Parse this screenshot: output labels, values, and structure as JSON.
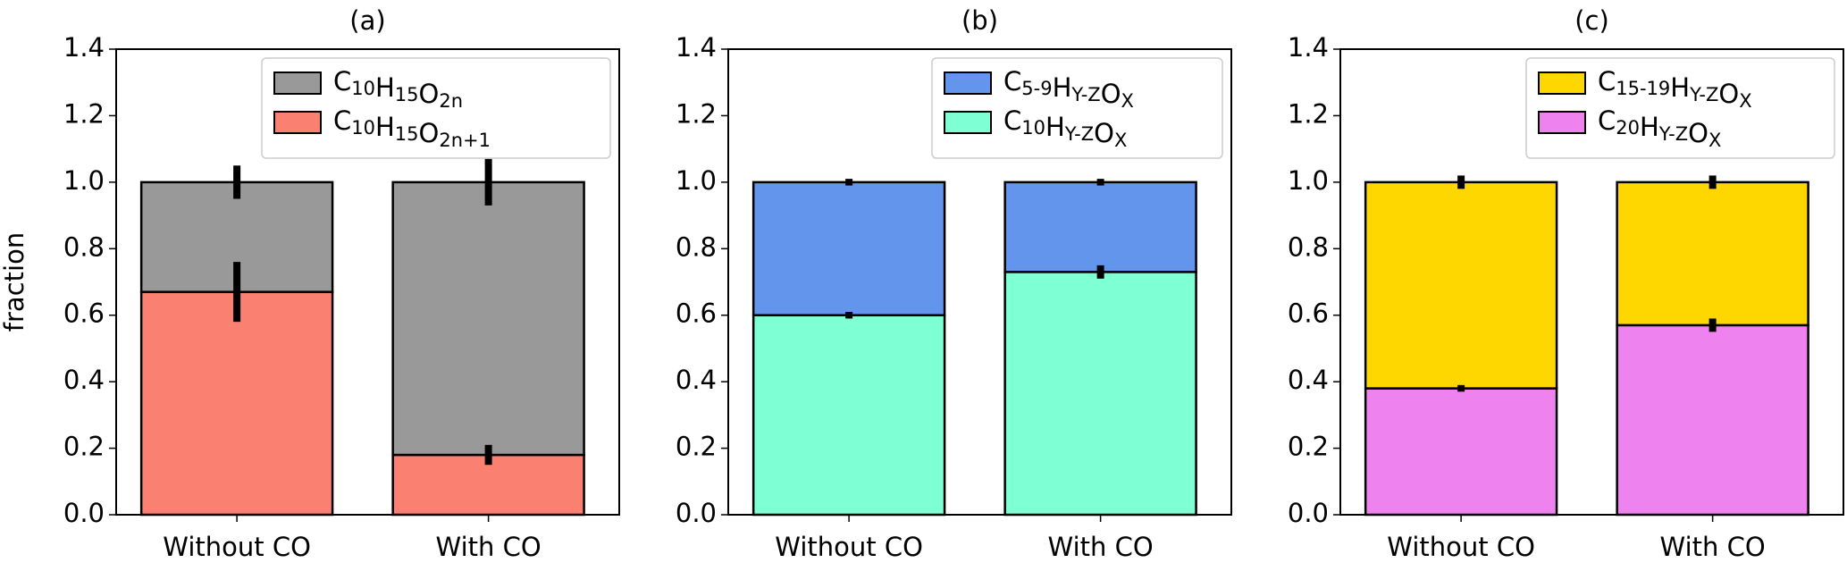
{
  "chart_data": [
    {
      "type": "stacked-bar",
      "title": "(a)",
      "ylabel": "fraction",
      "categories": [
        "Without CO",
        "With CO"
      ],
      "ylim": [
        0,
        1.4
      ],
      "yticks": [
        {
          "value": 0,
          "label": "0.0"
        },
        {
          "value": 0.2,
          "label": "0.2"
        },
        {
          "value": 0.4,
          "label": "0.4"
        },
        {
          "value": 0.6,
          "label": "0.6"
        },
        {
          "value": 0.8,
          "label": "0.8"
        },
        {
          "value": 1,
          "label": "1.0"
        },
        {
          "value": 1.2,
          "label": "1.2"
        },
        {
          "value": 1.4,
          "label": "1.4"
        }
      ],
      "legend": "upper right",
      "series": [
        {
          "name": "C10H15O2n+1",
          "color": "#fa8072",
          "values": [
            0.67,
            0.18
          ],
          "errors": [
            0.09,
            0.03
          ]
        },
        {
          "name": "C10H15O2n",
          "color": "#999999",
          "values": [
            0.33,
            0.82
          ],
          "errors": [
            0.05,
            0.07
          ]
        }
      ]
    },
    {
      "type": "stacked-bar",
      "title": "(b)",
      "categories": [
        "Without CO",
        "With CO"
      ],
      "ylim": [
        0,
        1.4
      ],
      "yticks": [
        {
          "value": 0,
          "label": "0.0"
        },
        {
          "value": 0.2,
          "label": "0.2"
        },
        {
          "value": 0.4,
          "label": "0.4"
        },
        {
          "value": 0.6,
          "label": "0.6"
        },
        {
          "value": 0.8,
          "label": "0.8"
        },
        {
          "value": 1,
          "label": "1.0"
        },
        {
          "value": 1.2,
          "label": "1.2"
        },
        {
          "value": 1.4,
          "label": "1.4"
        }
      ],
      "legend": "upper right",
      "series": [
        {
          "name": "C10HY-ZOX",
          "color": "#7fffd4",
          "values": [
            0.6,
            0.73
          ],
          "errors": [
            0.01,
            0.02
          ]
        },
        {
          "name": "C5-9HY-ZOX",
          "color": "#6495ed",
          "values": [
            0.4,
            0.27
          ],
          "errors": [
            0.01,
            0.01
          ]
        }
      ]
    },
    {
      "type": "stacked-bar",
      "title": "(c)",
      "categories": [
        "Without CO",
        "With CO"
      ],
      "ylim": [
        0,
        1.4
      ],
      "yticks": [
        {
          "value": 0,
          "label": "0.0"
        },
        {
          "value": 0.2,
          "label": "0.2"
        },
        {
          "value": 0.4,
          "label": "0.4"
        },
        {
          "value": 0.6,
          "label": "0.6"
        },
        {
          "value": 0.8,
          "label": "0.8"
        },
        {
          "value": 1,
          "label": "1.0"
        },
        {
          "value": 1.2,
          "label": "1.2"
        },
        {
          "value": 1.4,
          "label": "1.4"
        }
      ],
      "legend": "upper right",
      "series": [
        {
          "name": "C20HY-ZOX",
          "color": "#ee82ee",
          "values": [
            0.38,
            0.57
          ],
          "errors": [
            0.01,
            0.02
          ]
        },
        {
          "name": "C15-19HY-ZOX",
          "color": "#ffd700",
          "values": [
            0.62,
            0.43
          ],
          "errors": [
            0.02,
            0.02
          ]
        }
      ]
    }
  ]
}
